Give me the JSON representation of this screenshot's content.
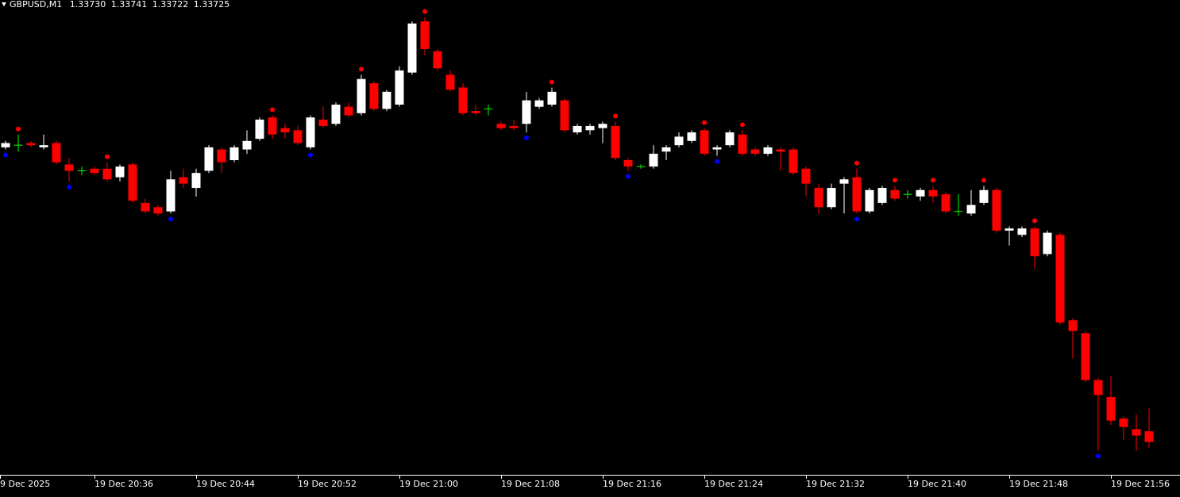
{
  "chart_data": {
    "type": "candlestick",
    "header": {
      "symbol": "GBPUSD,M1",
      "values": [
        1.3373,
        1.33741,
        1.33722,
        1.33725
      ],
      "value_labels": [
        "1.33730",
        "1.33741",
        "1.33722",
        "1.33725"
      ]
    },
    "ylim": [
      1.3371,
      1.33932
    ],
    "x_labels": [
      "9 Dec 2025",
      "19 Dec 20:36",
      "19 Dec 20:44",
      "19 Dec 20:52",
      "19 Dec 21:00",
      "19 Dec 21:08",
      "19 Dec 21:16",
      "19 Dec 21:24",
      "19 Dec 21:32",
      "19 Dec 21:40",
      "19 Dec 21:48",
      "19 Dec 21:56"
    ],
    "colors": {
      "bull": "#ffffff",
      "bear": "#ff0000",
      "doji": "#00ff00",
      "fractal_up": "#ff0000",
      "fractal_down": "#0000ff",
      "axis": "#ffffff",
      "background": "#000000"
    },
    "open": [
      1.33863,
      1.33864,
      1.33865,
      1.33863,
      1.33865,
      1.33855,
      1.33852,
      1.33853,
      1.33853,
      1.33849,
      1.33855,
      1.33837,
      1.33835,
      1.33833,
      1.33849,
      1.33844,
      1.33852,
      1.33862,
      1.33857,
      1.33862,
      1.33867,
      1.33877,
      1.33872,
      1.33871,
      1.33863,
      1.33876,
      1.33874,
      1.33882,
      1.33879,
      1.33893,
      1.33881,
      1.33883,
      1.33898,
      1.33922,
      1.33908,
      1.33897,
      1.33891,
      1.3388,
      1.33881,
      1.33874,
      1.33873,
      1.33874,
      1.33882,
      1.33883,
      1.33885,
      1.3387,
      1.33871,
      1.33872,
      1.33873,
      1.33857,
      1.33854,
      1.33854,
      1.33861,
      1.33864,
      1.33866,
      1.33871,
      1.33862,
      1.33864,
      1.33869,
      1.33862,
      1.3386,
      1.33862,
      1.33862,
      1.33853,
      1.33844,
      1.33835,
      1.33846,
      1.33849,
      1.33833,
      1.33837,
      1.33843,
      1.33841,
      1.3384,
      1.33843,
      1.33841,
      1.33833,
      1.33832,
      1.33837,
      1.33843,
      1.33824,
      1.33822,
      1.33825,
      1.33813,
      1.33822,
      1.33782,
      1.33776,
      1.33754,
      1.33746,
      1.33736,
      1.33731,
      1.3373
    ],
    "high": [
      1.33866,
      1.33869,
      1.33866,
      1.33869,
      1.33866,
      1.33858,
      1.33854,
      1.33854,
      1.33856,
      1.33855,
      1.33856,
      1.33839,
      1.33836,
      1.33852,
      1.33853,
      1.33853,
      1.33864,
      1.33863,
      1.33864,
      1.33871,
      1.33877,
      1.33878,
      1.33874,
      1.33873,
      1.33878,
      1.33882,
      1.33884,
      1.33884,
      1.33897,
      1.33894,
      1.3389,
      1.33901,
      1.33922,
      1.33924,
      1.33909,
      1.33899,
      1.33893,
      1.33883,
      1.33883,
      1.33875,
      1.33876,
      1.33889,
      1.33886,
      1.33891,
      1.33886,
      1.33874,
      1.33874,
      1.33875,
      1.33875,
      1.33858,
      1.33855,
      1.33864,
      1.33864,
      1.3387,
      1.33871,
      1.33872,
      1.33864,
      1.33871,
      1.33871,
      1.33863,
      1.33864,
      1.33863,
      1.33863,
      1.33854,
      1.33846,
      1.33846,
      1.33849,
      1.33853,
      1.33844,
      1.33845,
      1.33845,
      1.33843,
      1.33844,
      1.33845,
      1.33842,
      1.33841,
      1.33843,
      1.33845,
      1.33844,
      1.33826,
      1.33826,
      1.33826,
      1.33824,
      1.33823,
      1.33783,
      1.33777,
      1.33755,
      1.33756,
      1.33737,
      1.33738,
      1.33741
    ],
    "low": [
      1.33862,
      1.33861,
      1.33863,
      1.33862,
      1.33855,
      1.33847,
      1.3385,
      1.3385,
      1.33847,
      1.33847,
      1.33837,
      1.33832,
      1.33831,
      1.33832,
      1.33844,
      1.3384,
      1.33851,
      1.33851,
      1.33856,
      1.3386,
      1.33866,
      1.33867,
      1.33867,
      1.33864,
      1.33862,
      1.33872,
      1.33873,
      1.33877,
      1.33878,
      1.3388,
      1.3388,
      1.33882,
      1.33897,
      1.33906,
      1.33899,
      1.33889,
      1.33878,
      1.33878,
      1.33878,
      1.33871,
      1.33871,
      1.3387,
      1.33881,
      1.33882,
      1.3387,
      1.33869,
      1.33869,
      1.33865,
      1.33857,
      1.33852,
      1.33853,
      1.33853,
      1.33857,
      1.33863,
      1.33865,
      1.33859,
      1.33859,
      1.33863,
      1.33859,
      1.33859,
      1.33859,
      1.33852,
      1.3385,
      1.3384,
      1.33832,
      1.33834,
      1.33832,
      1.33832,
      1.33832,
      1.33836,
      1.33838,
      1.33839,
      1.33838,
      1.33837,
      1.33832,
      1.33831,
      1.33831,
      1.33836,
      1.33823,
      1.33817,
      1.33821,
      1.33806,
      1.33812,
      1.3378,
      1.33764,
      1.33753,
      1.33721,
      1.33733,
      1.33726,
      1.33721,
      1.33722
    ],
    "close": [
      1.33865,
      1.33864,
      1.33864,
      1.33864,
      1.33856,
      1.33852,
      1.33852,
      1.33851,
      1.33848,
      1.33854,
      1.33838,
      1.33833,
      1.33832,
      1.33848,
      1.33846,
      1.33851,
      1.33863,
      1.33856,
      1.33863,
      1.33866,
      1.33876,
      1.33869,
      1.3387,
      1.33865,
      1.33877,
      1.33873,
      1.33883,
      1.33878,
      1.33895,
      1.33881,
      1.33889,
      1.33899,
      1.33921,
      1.33909,
      1.339,
      1.3389,
      1.33879,
      1.33879,
      1.33881,
      1.33872,
      1.33872,
      1.33885,
      1.33885,
      1.33889,
      1.33871,
      1.33873,
      1.33873,
      1.33874,
      1.33858,
      1.33854,
      1.33854,
      1.3386,
      1.33863,
      1.33868,
      1.3387,
      1.3386,
      1.33863,
      1.3387,
      1.3386,
      1.3386,
      1.33863,
      1.33861,
      1.33851,
      1.33846,
      1.33835,
      1.33844,
      1.33848,
      1.33833,
      1.33843,
      1.33844,
      1.33839,
      1.33841,
      1.33843,
      1.3384,
      1.33833,
      1.33833,
      1.33836,
      1.33843,
      1.33824,
      1.33825,
      1.33825,
      1.33812,
      1.33823,
      1.33781,
      1.33777,
      1.33754,
      1.33747,
      1.33735,
      1.33732,
      1.33728,
      1.33725
    ],
    "fractals_up": [
      1,
      8,
      21,
      28,
      33,
      43,
      48,
      55,
      58,
      67,
      70,
      73,
      77,
      81
    ],
    "fractals_down": [
      0,
      5,
      13,
      24,
      41,
      49,
      56,
      67,
      86
    ]
  }
}
